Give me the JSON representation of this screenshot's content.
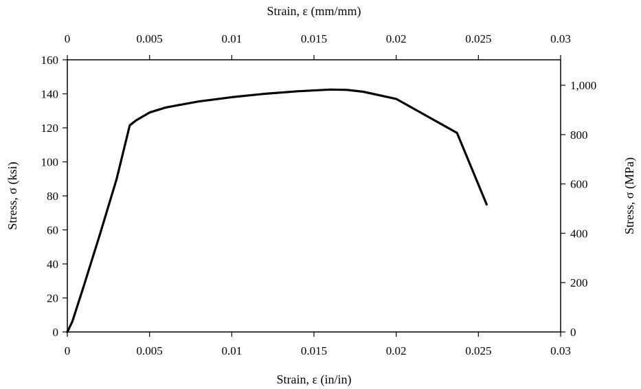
{
  "chart_data": {
    "type": "line",
    "x_axis_bottom": {
      "label": "Strain, ε (in/in)",
      "range": [
        0,
        0.03
      ],
      "ticks": [
        "0",
        "0.005",
        "0.01",
        "0.015",
        "0.02",
        "0.025",
        "0.03"
      ]
    },
    "x_axis_top": {
      "label": "Strain, ε (mm/mm)",
      "range": [
        0,
        0.03
      ],
      "ticks": [
        "0",
        "0.005",
        "0.01",
        "0.015",
        "0.02",
        "0.025",
        "0.03"
      ]
    },
    "y_axis_left": {
      "label": "Stress, σ (ksi)",
      "range": [
        0,
        160
      ],
      "ticks": [
        "0",
        "20",
        "40",
        "60",
        "80",
        "100",
        "120",
        "140",
        "160"
      ]
    },
    "y_axis_right": {
      "label": "Stress, σ (MPa)",
      "range": [
        0,
        1103.2
      ],
      "ticks": [
        "0",
        "200",
        "400",
        "600",
        "800",
        "1,000"
      ]
    },
    "grid": false,
    "series": [
      {
        "color": "#000000",
        "points": [
          [
            0,
            0
          ],
          [
            0.0003,
            6
          ],
          [
            0.001,
            27
          ],
          [
            0.002,
            58
          ],
          [
            0.003,
            90
          ],
          [
            0.0038,
            121.5
          ],
          [
            0.0042,
            124.5
          ],
          [
            0.005,
            129
          ],
          [
            0.006,
            132
          ],
          [
            0.008,
            135.5
          ],
          [
            0.01,
            138
          ],
          [
            0.012,
            140
          ],
          [
            0.014,
            141.5
          ],
          [
            0.016,
            142.5
          ],
          [
            0.017,
            142.3
          ],
          [
            0.018,
            141.2
          ],
          [
            0.02,
            137
          ],
          [
            0.0237,
            117
          ],
          [
            0.0255,
            75
          ]
        ]
      }
    ]
  }
}
